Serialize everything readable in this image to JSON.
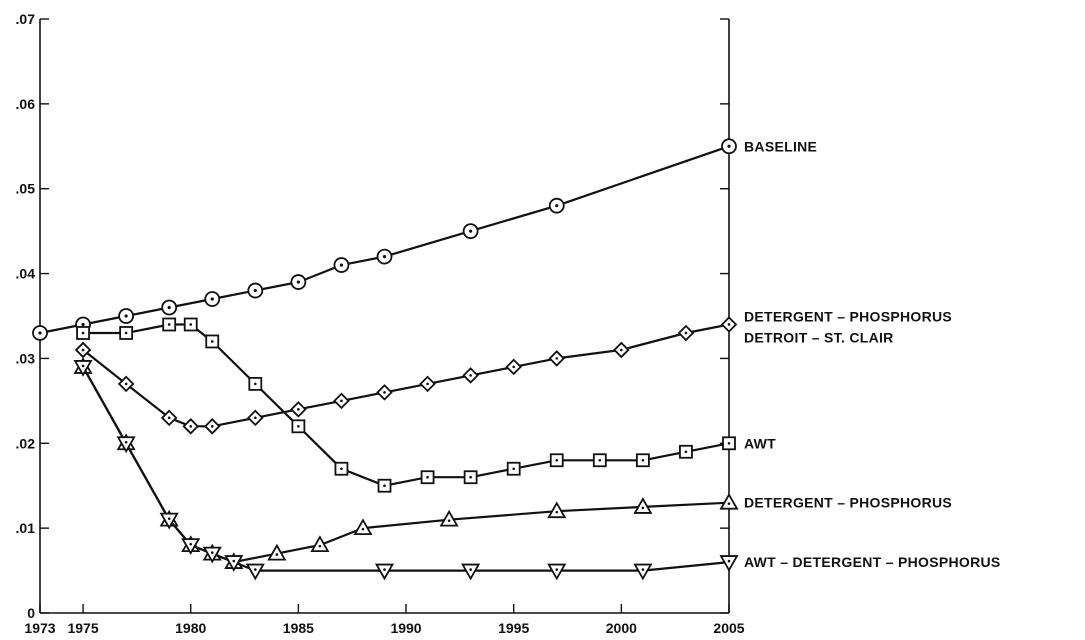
{
  "chart_data": {
    "type": "line",
    "title": "",
    "xlabel": "",
    "ylabel": "",
    "xlim": [
      1973,
      2005
    ],
    "ylim": [
      0,
      0.07
    ],
    "grid": false,
    "x_ticks": [
      1973,
      1975,
      1980,
      1985,
      1990,
      1995,
      2000,
      2005
    ],
    "x_tick_labels": [
      "1973",
      "1975",
      "1980",
      "1985",
      "1990",
      "1995",
      "2000",
      "2005"
    ],
    "y_ticks": [
      0,
      0.01,
      0.02,
      0.03,
      0.04,
      0.05,
      0.06,
      0.07
    ],
    "y_tick_labels": [
      "0",
      ".01",
      ".02",
      ".03",
      ".04",
      ".05",
      ".06",
      ".07"
    ],
    "series": [
      {
        "name": "BASELINE",
        "marker": "circle-dot",
        "points": [
          [
            1973,
            0.033
          ],
          [
            1975,
            0.034
          ],
          [
            1977,
            0.035
          ],
          [
            1979,
            0.036
          ],
          [
            1981,
            0.037
          ],
          [
            1983,
            0.038
          ],
          [
            1985,
            0.039
          ],
          [
            1987,
            0.041
          ],
          [
            1989,
            0.042
          ],
          [
            1993,
            0.045
          ],
          [
            1997,
            0.048
          ],
          [
            2005,
            0.055
          ]
        ]
      },
      {
        "name": "DETERGENT – PHOSPHORUS",
        "name_line2": "DETROIT – ST. CLAIR",
        "marker": "diamond",
        "points": [
          [
            1975,
            0.031
          ],
          [
            1977,
            0.027
          ],
          [
            1979,
            0.023
          ],
          [
            1980,
            0.022
          ],
          [
            1981,
            0.022
          ],
          [
            1983,
            0.023
          ],
          [
            1985,
            0.024
          ],
          [
            1987,
            0.025
          ],
          [
            1989,
            0.026
          ],
          [
            1991,
            0.027
          ],
          [
            1993,
            0.028
          ],
          [
            1995,
            0.029
          ],
          [
            1997,
            0.03
          ],
          [
            2000,
            0.031
          ],
          [
            2003,
            0.033
          ],
          [
            2005,
            0.034
          ]
        ]
      },
      {
        "name": "AWT",
        "marker": "square",
        "points": [
          [
            1975,
            0.033
          ],
          [
            1977,
            0.033
          ],
          [
            1979,
            0.034
          ],
          [
            1980,
            0.034
          ],
          [
            1981,
            0.032
          ],
          [
            1983,
            0.027
          ],
          [
            1985,
            0.022
          ],
          [
            1987,
            0.017
          ],
          [
            1989,
            0.015
          ],
          [
            1991,
            0.016
          ],
          [
            1993,
            0.016
          ],
          [
            1995,
            0.017
          ],
          [
            1997,
            0.018
          ],
          [
            1999,
            0.018
          ],
          [
            2001,
            0.018
          ],
          [
            2003,
            0.019
          ],
          [
            2005,
            0.02
          ]
        ]
      },
      {
        "name": "DETERGENT – PHOSPHORUS",
        "marker": "triangle-up",
        "points": [
          [
            1975,
            0.029
          ],
          [
            1977,
            0.02
          ],
          [
            1979,
            0.011
          ],
          [
            1980,
            0.008
          ],
          [
            1981,
            0.007
          ],
          [
            1982,
            0.006
          ],
          [
            1984,
            0.007
          ],
          [
            1986,
            0.008
          ],
          [
            1988,
            0.01
          ],
          [
            1992,
            0.011
          ],
          [
            1997,
            0.012
          ],
          [
            2001,
            0.0125
          ],
          [
            2005,
            0.013
          ]
        ]
      },
      {
        "name": "AWT – DETERGENT – PHOSPHORUS",
        "marker": "triangle-down",
        "points": [
          [
            1975,
            0.029
          ],
          [
            1977,
            0.02
          ],
          [
            1979,
            0.011
          ],
          [
            1980,
            0.008
          ],
          [
            1981,
            0.007
          ],
          [
            1982,
            0.006
          ],
          [
            1983,
            0.005
          ],
          [
            1989,
            0.005
          ],
          [
            1993,
            0.005
          ],
          [
            1997,
            0.005
          ],
          [
            2001,
            0.005
          ],
          [
            2005,
            0.006
          ]
        ]
      }
    ]
  }
}
